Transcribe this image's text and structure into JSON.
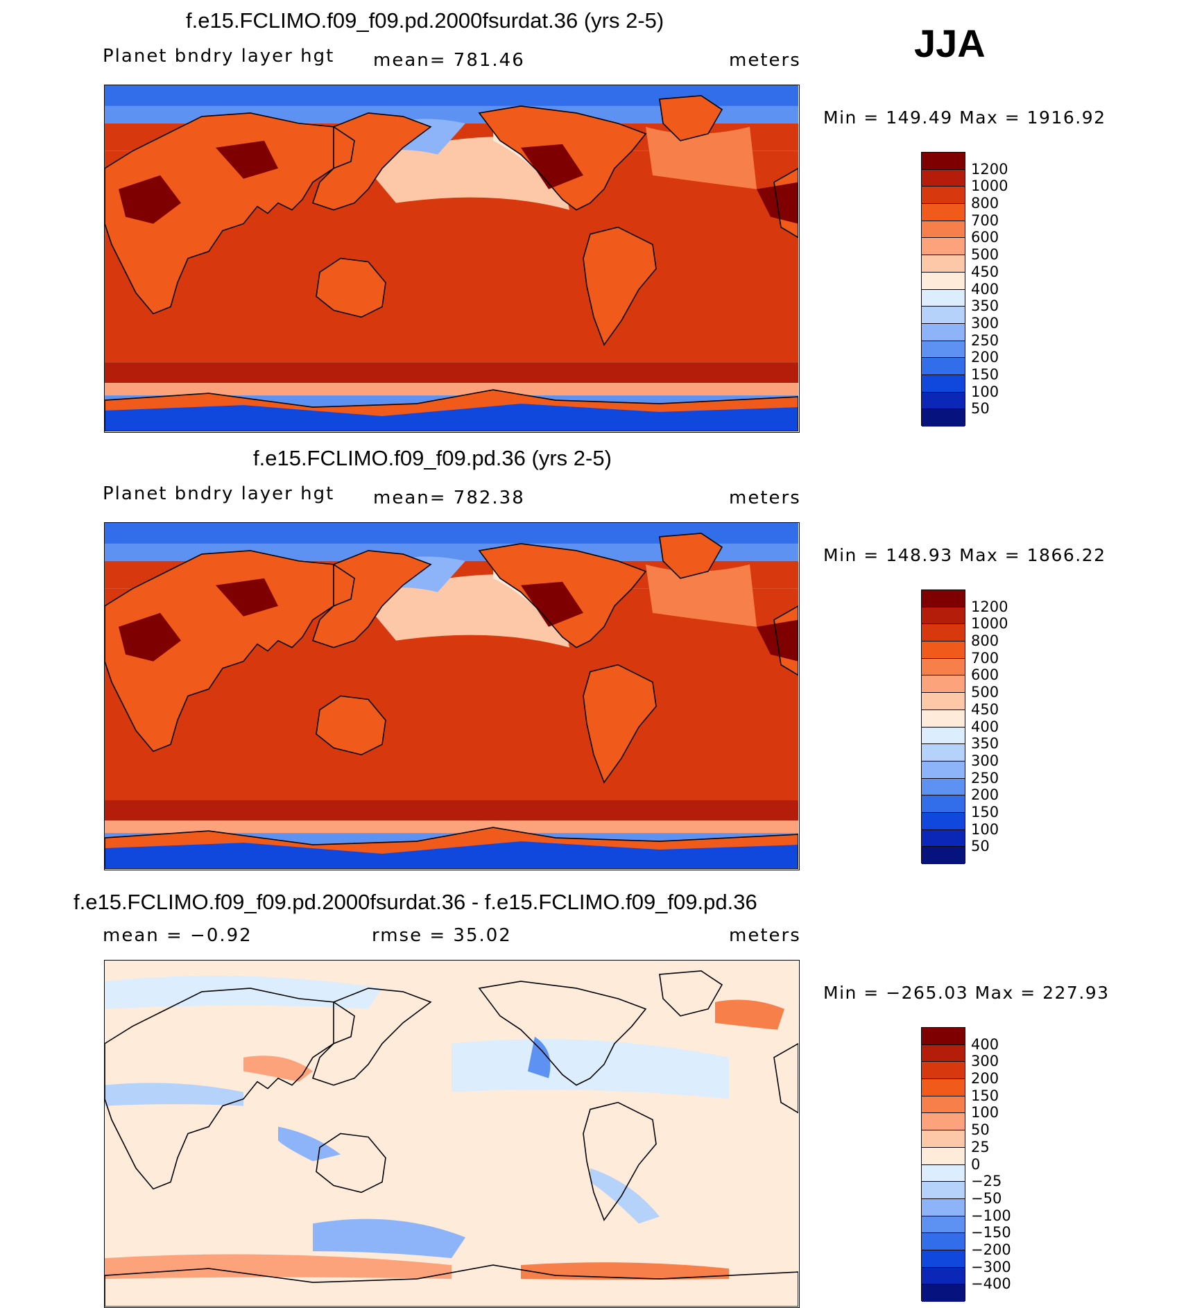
{
  "season": "JJA",
  "panels": [
    {
      "title": "f.e15.FCLIMO.f09_f09.pd.2000fsurdat.36 (yrs 2-5)",
      "variable": "Planet bndry layer hgt",
      "stat1": "mean=  781.46",
      "stat2": "",
      "units": "meters",
      "minmax": "Min  =  149.49  Max  =  1916.92",
      "field": "model"
    },
    {
      "title": "f.e15.FCLIMO.f09_f09.pd.36 (yrs 2-5)",
      "variable": "Planet bndry layer hgt",
      "stat1": "mean=  782.38",
      "stat2": "",
      "units": "meters",
      "minmax": "Min  =  148.93  Max  =  1866.22",
      "field": "model"
    },
    {
      "title": "f.e15.FCLIMO.f09_f09.pd.2000fsurdat.36 - f.e15.FCLIMO.f09_f09.pd.36",
      "variable": "mean  =   −0.92",
      "stat1": "rmse  =   35.02",
      "stat2": "",
      "units": "meters",
      "minmax": "Min  =  −265.03  Max  =  227.93",
      "field": "diff"
    }
  ],
  "colorbars": {
    "model": {
      "labels": [
        "1200",
        "1000",
        "800",
        "700",
        "600",
        "500",
        "450",
        "400",
        "350",
        "300",
        "250",
        "200",
        "150",
        "100",
        "50"
      ],
      "colors": [
        "#7f0000",
        "#b31d0a",
        "#d8380d",
        "#f05a1a",
        "#f7804a",
        "#fca37b",
        "#fdc8a8",
        "#feebd9",
        "#dceefd",
        "#b5d2fb",
        "#8db4f8",
        "#5e92f2",
        "#326ee9",
        "#1048dd",
        "#0a27b8",
        "#06137f"
      ]
    },
    "diff": {
      "labels": [
        "400",
        "300",
        "200",
        "150",
        "100",
        "50",
        "25",
        "0",
        "−25",
        "−50",
        "−100",
        "−150",
        "−200",
        "−300",
        "−400"
      ],
      "colors": [
        "#7f0000",
        "#b31d0a",
        "#d8380d",
        "#f05a1a",
        "#f7804a",
        "#fca37b",
        "#fdc8a8",
        "#feebd9",
        "#dceefd",
        "#b5d2fb",
        "#8db4f8",
        "#5e92f2",
        "#326ee9",
        "#1048dd",
        "#0a27b8",
        "#06137f"
      ]
    }
  }
}
